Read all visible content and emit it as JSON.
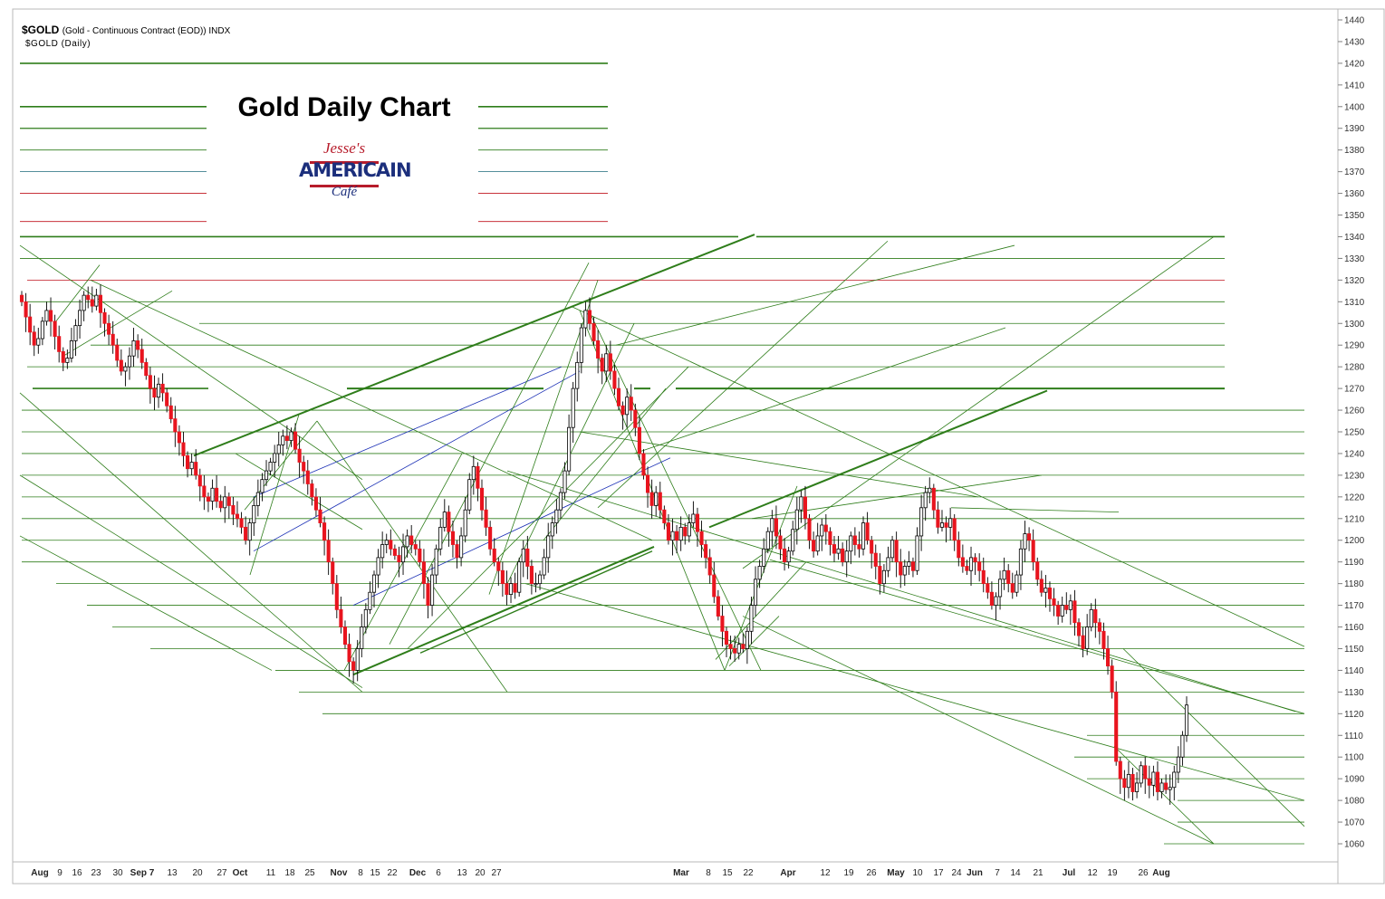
{
  "header": {
    "symbol": "$GOLD",
    "description": "(Gold - Continuous Contract (EOD)) INDX",
    "subtitle": "$GOLD (Daily)"
  },
  "logo": {
    "line1": "Jesse's",
    "line2": "AMERICAIN",
    "line3": "Café"
  },
  "colors": {
    "up_candle": "#ffffff",
    "down_candle": "#e8141e",
    "wick": "#000000",
    "trend_green": "#2e7d1a",
    "trend_blue": "#1a2fb5",
    "trend_red": "#c0141e"
  },
  "chart_data": {
    "type": "candlestick",
    "title": "Gold Daily Chart",
    "y_axis_position": "right",
    "ylim": [
      1052,
      1443
    ],
    "yticks": [
      1060,
      1070,
      1080,
      1090,
      1100,
      1110,
      1120,
      1130,
      1140,
      1150,
      1160,
      1170,
      1180,
      1190,
      1200,
      1210,
      1220,
      1230,
      1240,
      1250,
      1260,
      1270,
      1280,
      1290,
      1300,
      1310,
      1320,
      1330,
      1340,
      1350,
      1360,
      1370,
      1380,
      1390,
      1400,
      1410,
      1420,
      1430,
      1440
    ],
    "x_labels": [
      "Aug",
      "9",
      "16",
      "23",
      "30",
      "Sep 7",
      "13",
      "20",
      "27",
      "Oct",
      "11",
      "18",
      "25",
      "Nov",
      "8",
      "15",
      "22",
      "Dec",
      "6",
      "13",
      "20",
      "27",
      "Mar",
      "8",
      "15",
      "22",
      "Apr",
      "12",
      "19",
      "26",
      "May",
      "10",
      "17",
      "24",
      "Jun",
      "7",
      "14",
      "21",
      "Jul",
      "12",
      "19",
      "26",
      "Aug"
    ],
    "x_label_bold": [
      "Aug",
      "Sep 7",
      "Oct",
      "Nov",
      "Dec",
      "Mar",
      "Apr",
      "May",
      "Jun",
      "Jul",
      "Aug"
    ],
    "closes": [
      1310,
      1303,
      1296,
      1290,
      1293,
      1301,
      1306,
      1301,
      1294,
      1287,
      1282,
      1284,
      1292,
      1299,
      1306,
      1313,
      1311,
      1308,
      1313,
      1305,
      1300,
      1295,
      1290,
      1283,
      1278,
      1280,
      1285,
      1292,
      1288,
      1282,
      1276,
      1270,
      1266,
      1272,
      1268,
      1262,
      1256,
      1250,
      1245,
      1239,
      1233,
      1236,
      1230,
      1225,
      1220,
      1218,
      1224,
      1218,
      1215,
      1220,
      1216,
      1212,
      1210,
      1206,
      1200,
      1208,
      1216,
      1222,
      1228,
      1232,
      1236,
      1240,
      1244,
      1248,
      1246,
      1250,
      1242,
      1236,
      1232,
      1226,
      1220,
      1214,
      1208,
      1200,
      1190,
      1180,
      1168,
      1160,
      1152,
      1144,
      1140,
      1150,
      1160,
      1168,
      1176,
      1184,
      1192,
      1198,
      1200,
      1196,
      1193,
      1190,
      1197,
      1202,
      1198,
      1196,
      1190,
      1180,
      1170,
      1184,
      1196,
      1206,
      1213,
      1204,
      1198,
      1192,
      1202,
      1214,
      1228,
      1234,
      1224,
      1214,
      1206,
      1196,
      1190,
      1186,
      1180,
      1175,
      1180,
      1176,
      1190,
      1196,
      1188,
      1180,
      1180,
      1184,
      1192,
      1202,
      1208,
      1214,
      1222,
      1232,
      1252,
      1270,
      1282,
      1298,
      1306,
      1300,
      1292,
      1284,
      1278,
      1286,
      1278,
      1270,
      1262,
      1258,
      1266,
      1260,
      1252,
      1240,
      1230,
      1222,
      1216,
      1222,
      1214,
      1208,
      1200,
      1204,
      1200,
      1206,
      1202,
      1208,
      1212,
      1204,
      1198,
      1192,
      1184,
      1174,
      1165,
      1158,
      1152,
      1150,
      1148,
      1152,
      1150,
      1158,
      1170,
      1182,
      1188,
      1196,
      1204,
      1210,
      1202,
      1196,
      1190,
      1195,
      1205,
      1214,
      1220,
      1210,
      1200,
      1195,
      1202,
      1207,
      1204,
      1198,
      1194,
      1196,
      1190,
      1195,
      1202,
      1198,
      1196,
      1208,
      1200,
      1194,
      1188,
      1180,
      1186,
      1192,
      1200,
      1190,
      1184,
      1188,
      1190,
      1186,
      1202,
      1215,
      1222,
      1224,
      1214,
      1206,
      1208,
      1206,
      1210,
      1200,
      1192,
      1188,
      1186,
      1192,
      1190,
      1186,
      1180,
      1176,
      1170,
      1174,
      1182,
      1186,
      1180,
      1176,
      1184,
      1196,
      1203,
      1200,
      1190,
      1182,
      1176,
      1178,
      1173,
      1170,
      1165,
      1170,
      1168,
      1172,
      1162,
      1156,
      1150,
      1160,
      1168,
      1162,
      1158,
      1150,
      1142,
      1130,
      1098,
      1090,
      1086,
      1092,
      1084,
      1088,
      1096,
      1090,
      1087,
      1093,
      1084,
      1088,
      1085,
      1086,
      1093,
      1100,
      1110,
      1124
    ]
  }
}
